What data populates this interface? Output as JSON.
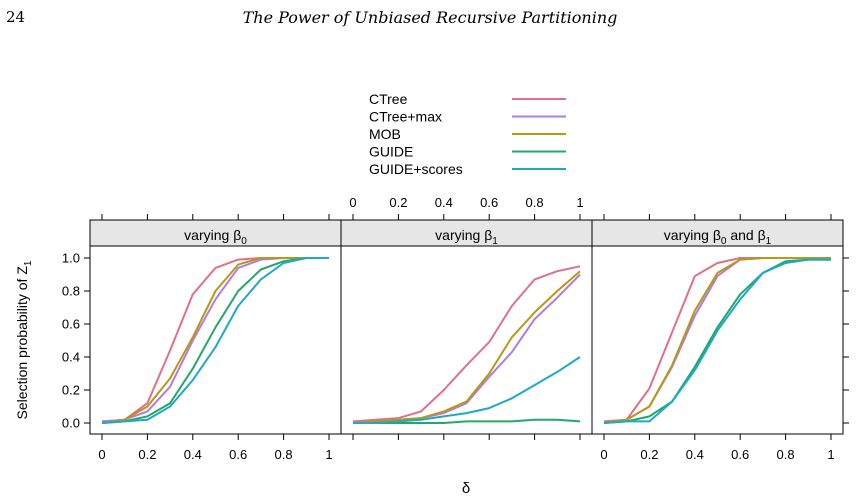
{
  "page": {
    "number": "24",
    "running_title": "The Power of Unbiased Recursive Partitioning"
  },
  "chart_data": {
    "type": "line",
    "xlabel": "δ",
    "ylabel": "Selection probability of Z",
    "ylabel_subscript": "1",
    "xlim": [
      0,
      1
    ],
    "ylim": [
      0,
      1
    ],
    "x_ticks": [
      "0",
      "0.2",
      "0.4",
      "0.6",
      "0.8",
      "1"
    ],
    "y_ticks": [
      "0.0",
      "0.2",
      "0.4",
      "0.6",
      "0.8",
      "1.0"
    ],
    "legend_position": "top",
    "series": [
      {
        "name": "CTree",
        "color": "#E0708A"
      },
      {
        "name": "CTree+max",
        "color": "#B07CE6"
      },
      {
        "name": "MOB",
        "color": "#B8990F"
      },
      {
        "name": "GUIDE",
        "color": "#22A86A"
      },
      {
        "name": "GUIDE+scores",
        "color": "#1FA8C7"
      }
    ],
    "x": [
      0,
      0.1,
      0.2,
      0.3,
      0.4,
      0.5,
      0.6,
      0.7,
      0.8,
      0.9,
      1.0
    ],
    "panels": [
      {
        "strip": "varying β",
        "strip_sub": "0",
        "values": [
          [
            0.01,
            0.02,
            0.12,
            0.44,
            0.78,
            0.94,
            0.99,
            1.0,
            1.0,
            1.0,
            1.0
          ],
          [
            0.01,
            0.02,
            0.07,
            0.22,
            0.5,
            0.75,
            0.94,
            0.99,
            1.0,
            1.0,
            1.0
          ],
          [
            0.0,
            0.02,
            0.1,
            0.27,
            0.52,
            0.8,
            0.96,
            1.0,
            1.0,
            1.0,
            1.0
          ],
          [
            0.0,
            0.01,
            0.04,
            0.12,
            0.33,
            0.58,
            0.8,
            0.93,
            0.98,
            1.0,
            1.0
          ],
          [
            0.0,
            0.01,
            0.02,
            0.1,
            0.26,
            0.46,
            0.71,
            0.87,
            0.97,
            1.0,
            1.0
          ]
        ]
      },
      {
        "strip": "varying β",
        "strip_sub": "1",
        "values": [
          [
            0.01,
            0.02,
            0.03,
            0.07,
            0.2,
            0.35,
            0.49,
            0.71,
            0.87,
            0.92,
            0.95
          ],
          [
            0.0,
            0.01,
            0.02,
            0.03,
            0.06,
            0.12,
            0.28,
            0.43,
            0.63,
            0.76,
            0.9
          ],
          [
            0.0,
            0.01,
            0.02,
            0.03,
            0.07,
            0.13,
            0.3,
            0.52,
            0.67,
            0.8,
            0.92
          ],
          [
            0.0,
            0.0,
            0.0,
            0.0,
            0.0,
            0.01,
            0.01,
            0.01,
            0.02,
            0.02,
            0.01
          ],
          [
            0.0,
            0.0,
            0.01,
            0.02,
            0.04,
            0.06,
            0.09,
            0.15,
            0.23,
            0.31,
            0.4
          ]
        ]
      },
      {
        "strip": "varying β",
        "strip_sub": "0",
        "strip_mid": "  and  β",
        "strip_sub2": "1",
        "values": [
          [
            0.01,
            0.02,
            0.21,
            0.55,
            0.89,
            0.97,
            1.0,
            1.0,
            1.0,
            1.0,
            1.0
          ],
          [
            0.0,
            0.02,
            0.1,
            0.34,
            0.65,
            0.89,
            0.99,
            1.0,
            1.0,
            1.0,
            1.0
          ],
          [
            0.0,
            0.02,
            0.1,
            0.35,
            0.68,
            0.91,
            0.99,
            1.0,
            1.0,
            1.0,
            1.0
          ],
          [
            0.0,
            0.01,
            0.04,
            0.13,
            0.34,
            0.58,
            0.78,
            0.91,
            0.98,
            0.99,
            0.99
          ],
          [
            0.0,
            0.01,
            0.01,
            0.13,
            0.32,
            0.56,
            0.75,
            0.91,
            0.97,
            0.99,
            0.99
          ]
        ]
      }
    ]
  }
}
